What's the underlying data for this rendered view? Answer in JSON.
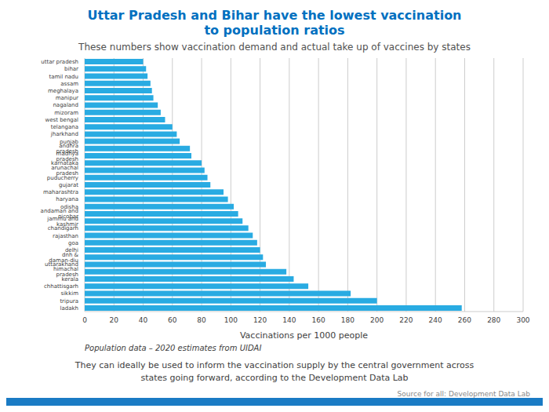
{
  "chart_data": {
    "type": "bar",
    "orientation": "horizontal",
    "title": "Uttar Pradesh and Bihar have the lowest vaccination\nto population ratios",
    "subtitle": "These numbers show vaccination demand and actual take up of vaccines by states",
    "x_label": "Vaccinations per 1000 people",
    "annotations": [
      "Population data – 2020 estimates from UIDAI",
      "They can ideally be used to inform the vaccination supply by the central government across\nstates going forward, according to the Development Data Lab",
      "Source for all: Development Data Lab"
    ],
    "categories": [
      "uttar pradesh",
      "bihar",
      "tamil nadu",
      "assam",
      "meghalaya",
      "manipur",
      "nagaland",
      "mizoram",
      "west bengal",
      "telangana",
      "jharkhand",
      "punjab",
      "andhra pradesh",
      "madhya pradesh",
      "karnataka",
      "arunachal pradesh",
      "puducherry",
      "gujarat",
      "maharashtra",
      "haryana",
      "odisha",
      "andaman and nicobar",
      "jammu and kashmir",
      "chandigarh",
      "rajasthan",
      "goa",
      "delhi",
      "dnh & daman-diu",
      "uttarakhand",
      "himachal pradesh",
      "kerala",
      "chhattisgarh",
      "sikkim",
      "tripura",
      "ladakh"
    ],
    "values": [
      40,
      42,
      43,
      45,
      46,
      47,
      50,
      52,
      55,
      60,
      63,
      65,
      72,
      73,
      80,
      82,
      84,
      86,
      95,
      98,
      102,
      105,
      108,
      112,
      115,
      118,
      120,
      122,
      124,
      138,
      143,
      153,
      182,
      200,
      258
    ],
    "color": "#29ABE2",
    "xlim": [
      0,
      300
    ],
    "xticks": [
      0,
      20,
      40,
      60,
      80,
      100,
      120,
      140,
      160,
      180,
      200,
      220,
      240,
      260,
      280,
      300
    ],
    "grid": true
  }
}
